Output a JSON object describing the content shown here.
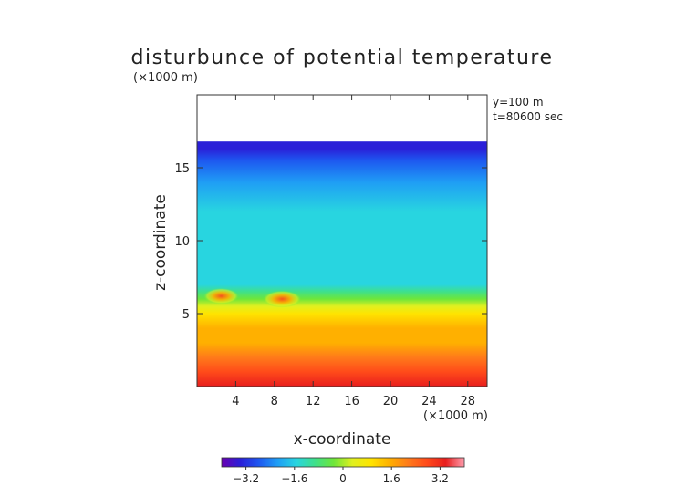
{
  "chart_data": {
    "type": "heatmap",
    "title": "disturbunce of potential temperature",
    "xlabel": "x-coordinate",
    "ylabel": "z-coordinate",
    "x_unit": "(×1000 m)",
    "y_unit": "(×1000 m)",
    "annotations": [
      "y=100 m",
      "t=80600 sec"
    ],
    "xlim": [
      0,
      30
    ],
    "ylim": [
      0,
      20
    ],
    "x_ticks": [
      4,
      8,
      12,
      16,
      20,
      24,
      28
    ],
    "y_ticks": [
      5,
      10,
      15
    ],
    "data_top_z": 16.8,
    "colorbar": {
      "range": [
        -4,
        4
      ],
      "ticks": [
        -3.2,
        -1.6,
        0,
        1.6,
        3.2
      ],
      "tick_labels": [
        "−3.2",
        "−1.6",
        "0",
        "1.6",
        "3.2"
      ],
      "colors": [
        "#6a00b0",
        "#2a1fd8",
        "#1e58f0",
        "#1f9ef5",
        "#28d5e0",
        "#3fe08a",
        "#6ee63a",
        "#e0f020",
        "#ffe400",
        "#ffb000",
        "#ff7a1a",
        "#ff4a1a",
        "#e81e1e",
        "#ff9fb0"
      ]
    },
    "z_profile": [
      {
        "z": 0.0,
        "value": 3.0
      },
      {
        "z": 1.0,
        "value": 2.6
      },
      {
        "z": 2.0,
        "value": 2.0
      },
      {
        "z": 3.0,
        "value": 1.6
      },
      {
        "z": 4.0,
        "value": 1.3
      },
      {
        "z": 5.0,
        "value": 1.0
      },
      {
        "z": 5.5,
        "value": 0.5
      },
      {
        "z": 6.0,
        "value": -0.3
      },
      {
        "z": 6.5,
        "value": -0.9
      },
      {
        "z": 7.0,
        "value": -1.3
      },
      {
        "z": 9.0,
        "value": -1.5
      },
      {
        "z": 12.0,
        "value": -1.6
      },
      {
        "z": 14.0,
        "value": -1.9
      },
      {
        "z": 15.5,
        "value": -2.4
      },
      {
        "z": 16.3,
        "value": -3.0
      },
      {
        "z": 16.8,
        "value": -3.4
      }
    ],
    "warm_spots": [
      {
        "x": 2.5,
        "z": 6.2,
        "value": 1.8
      },
      {
        "x": 8.8,
        "z": 6.0,
        "value": 2.4
      }
    ]
  }
}
